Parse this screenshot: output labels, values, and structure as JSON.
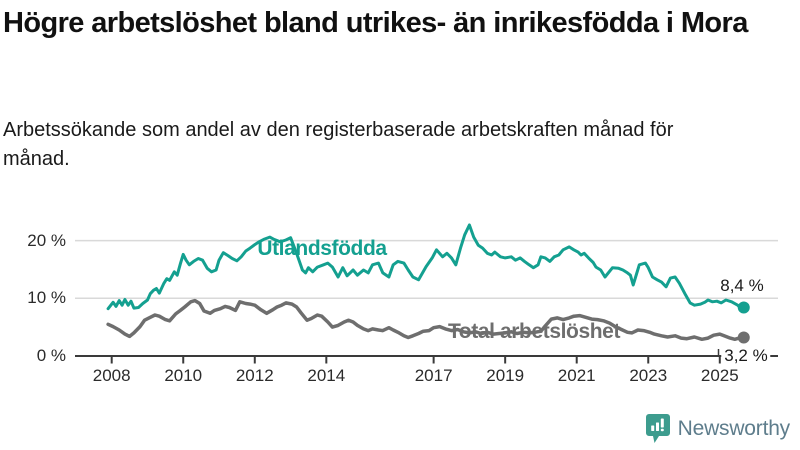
{
  "header": {
    "title": "Högre arbetslöshet bland utrikes- än inrikesfödda i Mora",
    "subtitle": "Arbetssökande som andel av den registerbaserade arbetskraften månad för månad."
  },
  "footer": {
    "brand": "Newsworthy",
    "logo_icon": "bar-chart-pin-icon"
  },
  "colors": {
    "foreign_born_line": "#14a090",
    "total_line": "#6e6e6e",
    "grid": "#d9d9d9",
    "axis": "#3a3a3a",
    "text": "#1a1a1a",
    "logo_pin": "#3d9c8e",
    "logo_text": "#5e7d8c"
  },
  "chart_data": {
    "type": "line",
    "unit": "%",
    "grid": "horizontal-only",
    "y_axis": {
      "range": [
        0,
        23.5
      ],
      "ticks": [
        {
          "label": "20 %",
          "value": 20
        },
        {
          "label": "10 %",
          "value": 10
        },
        {
          "label": "0 %",
          "value": 0
        }
      ]
    },
    "x_axis": {
      "range_years": [
        2007.9,
        2025.75
      ],
      "ticks": [
        {
          "label": "2008",
          "year": 2008
        },
        {
          "label": "2010",
          "year": 2010
        },
        {
          "label": "2012",
          "year": 2012
        },
        {
          "label": "2014",
          "year": 2014
        },
        {
          "label": "2017",
          "year": 2017
        },
        {
          "label": "2019",
          "year": 2019
        },
        {
          "label": "2021",
          "year": 2021
        },
        {
          "label": "2023",
          "year": 2023
        },
        {
          "label": "2025",
          "year": 2025
        }
      ]
    },
    "series": [
      {
        "name": "Utlandsfödda",
        "color": "#14a090",
        "end_value": 8.4,
        "end_label": "8,4 %",
        "points": [
          [
            2007.9,
            8.2
          ],
          [
            2008.04,
            9.3
          ],
          [
            2008.12,
            8.6
          ],
          [
            2008.21,
            9.6
          ],
          [
            2008.29,
            8.8
          ],
          [
            2008.37,
            9.8
          ],
          [
            2008.46,
            8.8
          ],
          [
            2008.54,
            9.5
          ],
          [
            2008.62,
            8.3
          ],
          [
            2008.75,
            8.4
          ],
          [
            2008.87,
            9.1
          ],
          [
            2009.0,
            9.7
          ],
          [
            2009.08,
            10.8
          ],
          [
            2009.17,
            11.4
          ],
          [
            2009.25,
            11.7
          ],
          [
            2009.33,
            10.9
          ],
          [
            2009.46,
            12.6
          ],
          [
            2009.54,
            13.4
          ],
          [
            2009.62,
            13.1
          ],
          [
            2009.75,
            14.6
          ],
          [
            2009.83,
            14.0
          ],
          [
            2009.92,
            16.0
          ],
          [
            2010.0,
            17.6
          ],
          [
            2010.08,
            16.6
          ],
          [
            2010.17,
            15.8
          ],
          [
            2010.29,
            16.4
          ],
          [
            2010.42,
            16.9
          ],
          [
            2010.54,
            16.6
          ],
          [
            2010.67,
            15.2
          ],
          [
            2010.79,
            14.6
          ],
          [
            2010.92,
            14.9
          ],
          [
            2011.0,
            16.6
          ],
          [
            2011.12,
            17.9
          ],
          [
            2011.25,
            17.4
          ],
          [
            2011.37,
            16.9
          ],
          [
            2011.5,
            16.5
          ],
          [
            2011.62,
            17.2
          ],
          [
            2011.75,
            18.2
          ],
          [
            2011.87,
            18.7
          ],
          [
            2012.0,
            19.3
          ],
          [
            2012.12,
            19.8
          ],
          [
            2012.25,
            20.2
          ],
          [
            2012.42,
            20.6
          ],
          [
            2012.54,
            20.2
          ],
          [
            2012.71,
            19.8
          ],
          [
            2012.87,
            20.1
          ],
          [
            2013.0,
            20.5
          ],
          [
            2013.17,
            17.8
          ],
          [
            2013.33,
            14.9
          ],
          [
            2013.42,
            14.4
          ],
          [
            2013.5,
            15.3
          ],
          [
            2013.62,
            14.6
          ],
          [
            2013.75,
            15.4
          ],
          [
            2013.92,
            15.8
          ],
          [
            2014.04,
            16.1
          ],
          [
            2014.17,
            15.4
          ],
          [
            2014.33,
            13.7
          ],
          [
            2014.46,
            15.3
          ],
          [
            2014.58,
            13.9
          ],
          [
            2014.75,
            14.9
          ],
          [
            2014.87,
            14.0
          ],
          [
            2015.04,
            14.9
          ],
          [
            2015.17,
            14.4
          ],
          [
            2015.29,
            15.8
          ],
          [
            2015.46,
            16.1
          ],
          [
            2015.58,
            14.4
          ],
          [
            2015.75,
            13.7
          ],
          [
            2015.87,
            15.8
          ],
          [
            2016.0,
            16.4
          ],
          [
            2016.17,
            16.1
          ],
          [
            2016.29,
            14.9
          ],
          [
            2016.42,
            13.7
          ],
          [
            2016.58,
            13.2
          ],
          [
            2016.79,
            15.5
          ],
          [
            2016.96,
            17.0
          ],
          [
            2017.08,
            18.4
          ],
          [
            2017.25,
            17.2
          ],
          [
            2017.37,
            17.8
          ],
          [
            2017.5,
            17.0
          ],
          [
            2017.62,
            15.8
          ],
          [
            2017.75,
            18.7
          ],
          [
            2017.87,
            21.0
          ],
          [
            2018.0,
            22.7
          ],
          [
            2018.12,
            20.6
          ],
          [
            2018.25,
            19.2
          ],
          [
            2018.37,
            18.7
          ],
          [
            2018.5,
            17.8
          ],
          [
            2018.62,
            17.5
          ],
          [
            2018.71,
            18.0
          ],
          [
            2018.87,
            17.2
          ],
          [
            2019.0,
            17.0
          ],
          [
            2019.17,
            17.2
          ],
          [
            2019.29,
            16.6
          ],
          [
            2019.42,
            17.0
          ],
          [
            2019.54,
            16.4
          ],
          [
            2019.67,
            15.8
          ],
          [
            2019.79,
            15.3
          ],
          [
            2019.92,
            15.8
          ],
          [
            2020.0,
            17.2
          ],
          [
            2020.12,
            17.0
          ],
          [
            2020.25,
            16.4
          ],
          [
            2020.37,
            17.2
          ],
          [
            2020.5,
            17.5
          ],
          [
            2020.62,
            18.4
          ],
          [
            2020.79,
            18.9
          ],
          [
            2020.92,
            18.4
          ],
          [
            2021.04,
            18.0
          ],
          [
            2021.12,
            17.5
          ],
          [
            2021.21,
            17.8
          ],
          [
            2021.33,
            17.0
          ],
          [
            2021.46,
            16.2
          ],
          [
            2021.54,
            15.4
          ],
          [
            2021.67,
            14.9
          ],
          [
            2021.79,
            13.7
          ],
          [
            2022.0,
            15.3
          ],
          [
            2022.17,
            15.2
          ],
          [
            2022.29,
            14.9
          ],
          [
            2022.42,
            14.4
          ],
          [
            2022.5,
            14.0
          ],
          [
            2022.58,
            12.3
          ],
          [
            2022.75,
            15.8
          ],
          [
            2022.92,
            16.1
          ],
          [
            2023.0,
            15.3
          ],
          [
            2023.12,
            13.7
          ],
          [
            2023.25,
            13.2
          ],
          [
            2023.37,
            12.8
          ],
          [
            2023.5,
            12.0
          ],
          [
            2023.62,
            13.5
          ],
          [
            2023.75,
            13.7
          ],
          [
            2023.87,
            12.6
          ],
          [
            2024.04,
            10.6
          ],
          [
            2024.17,
            9.2
          ],
          [
            2024.29,
            8.8
          ],
          [
            2024.46,
            9.0
          ],
          [
            2024.58,
            9.3
          ],
          [
            2024.67,
            9.7
          ],
          [
            2024.79,
            9.4
          ],
          [
            2024.92,
            9.5
          ],
          [
            2025.04,
            9.2
          ],
          [
            2025.17,
            9.7
          ],
          [
            2025.33,
            9.4
          ],
          [
            2025.5,
            8.8
          ],
          [
            2025.58,
            8.3
          ],
          [
            2025.67,
            8.4
          ]
        ]
      },
      {
        "name": "Total arbetslöshet",
        "color": "#6e6e6e",
        "end_value": 3.2,
        "end_label": "3,2 %",
        "points": [
          [
            2007.9,
            5.5
          ],
          [
            2008.04,
            5.1
          ],
          [
            2008.21,
            4.5
          ],
          [
            2008.37,
            3.8
          ],
          [
            2008.5,
            3.4
          ],
          [
            2008.62,
            4.0
          ],
          [
            2008.79,
            5.1
          ],
          [
            2008.92,
            6.2
          ],
          [
            2009.08,
            6.7
          ],
          [
            2009.21,
            7.1
          ],
          [
            2009.33,
            6.9
          ],
          [
            2009.5,
            6.3
          ],
          [
            2009.62,
            6.1
          ],
          [
            2009.79,
            7.3
          ],
          [
            2009.92,
            7.9
          ],
          [
            2010.04,
            8.5
          ],
          [
            2010.21,
            9.4
          ],
          [
            2010.33,
            9.6
          ],
          [
            2010.46,
            9.1
          ],
          [
            2010.58,
            7.8
          ],
          [
            2010.75,
            7.4
          ],
          [
            2010.87,
            7.9
          ],
          [
            2011.04,
            8.2
          ],
          [
            2011.17,
            8.6
          ],
          [
            2011.29,
            8.4
          ],
          [
            2011.46,
            7.9
          ],
          [
            2011.58,
            9.4
          ],
          [
            2011.75,
            9.1
          ],
          [
            2011.87,
            9.0
          ],
          [
            2012.0,
            8.8
          ],
          [
            2012.17,
            8.0
          ],
          [
            2012.33,
            7.4
          ],
          [
            2012.5,
            8.0
          ],
          [
            2012.62,
            8.5
          ],
          [
            2012.75,
            8.8
          ],
          [
            2012.87,
            9.2
          ],
          [
            2013.04,
            9.0
          ],
          [
            2013.17,
            8.5
          ],
          [
            2013.29,
            7.5
          ],
          [
            2013.46,
            6.2
          ],
          [
            2013.58,
            6.5
          ],
          [
            2013.75,
            7.1
          ],
          [
            2013.87,
            6.9
          ],
          [
            2014.04,
            5.9
          ],
          [
            2014.17,
            5.0
          ],
          [
            2014.33,
            5.3
          ],
          [
            2014.5,
            5.9
          ],
          [
            2014.62,
            6.2
          ],
          [
            2014.75,
            5.9
          ],
          [
            2014.87,
            5.3
          ],
          [
            2015.04,
            4.7
          ],
          [
            2015.17,
            4.4
          ],
          [
            2015.29,
            4.7
          ],
          [
            2015.46,
            4.5
          ],
          [
            2015.58,
            4.4
          ],
          [
            2015.75,
            4.9
          ],
          [
            2015.87,
            4.5
          ],
          [
            2016.0,
            4.1
          ],
          [
            2016.17,
            3.5
          ],
          [
            2016.29,
            3.2
          ],
          [
            2016.42,
            3.5
          ],
          [
            2016.58,
            3.9
          ],
          [
            2016.71,
            4.3
          ],
          [
            2016.87,
            4.4
          ],
          [
            2017.0,
            4.9
          ],
          [
            2017.17,
            5.1
          ],
          [
            2017.33,
            4.7
          ],
          [
            2017.5,
            4.4
          ],
          [
            2017.67,
            4.6
          ],
          [
            2017.83,
            4.2
          ],
          [
            2018.0,
            4.0
          ],
          [
            2018.17,
            4.2
          ],
          [
            2018.33,
            3.9
          ],
          [
            2018.5,
            4.1
          ],
          [
            2018.67,
            3.8
          ],
          [
            2018.83,
            3.9
          ],
          [
            2019.0,
            4.0
          ],
          [
            2019.17,
            4.2
          ],
          [
            2019.33,
            3.9
          ],
          [
            2019.5,
            4.1
          ],
          [
            2019.67,
            4.0
          ],
          [
            2019.83,
            4.1
          ],
          [
            2020.0,
            4.3
          ],
          [
            2020.12,
            5.2
          ],
          [
            2020.29,
            6.4
          ],
          [
            2020.46,
            6.6
          ],
          [
            2020.62,
            6.3
          ],
          [
            2020.79,
            6.6
          ],
          [
            2020.92,
            6.9
          ],
          [
            2021.08,
            7.0
          ],
          [
            2021.25,
            6.7
          ],
          [
            2021.42,
            6.4
          ],
          [
            2021.58,
            6.3
          ],
          [
            2021.75,
            6.1
          ],
          [
            2021.92,
            5.7
          ],
          [
            2022.08,
            5.1
          ],
          [
            2022.25,
            4.6
          ],
          [
            2022.42,
            4.1
          ],
          [
            2022.54,
            4.0
          ],
          [
            2022.71,
            4.5
          ],
          [
            2022.87,
            4.4
          ],
          [
            2023.04,
            4.1
          ],
          [
            2023.17,
            3.8
          ],
          [
            2023.37,
            3.5
          ],
          [
            2023.54,
            3.3
          ],
          [
            2023.75,
            3.5
          ],
          [
            2023.92,
            3.1
          ],
          [
            2024.08,
            3.0
          ],
          [
            2024.29,
            3.3
          ],
          [
            2024.5,
            2.9
          ],
          [
            2024.67,
            3.1
          ],
          [
            2024.83,
            3.6
          ],
          [
            2025.0,
            3.8
          ],
          [
            2025.12,
            3.5
          ],
          [
            2025.29,
            3.1
          ],
          [
            2025.42,
            2.9
          ],
          [
            2025.54,
            3.1
          ],
          [
            2025.67,
            3.2
          ]
        ]
      }
    ],
    "legend_position": "inline-labels-on-lines"
  }
}
